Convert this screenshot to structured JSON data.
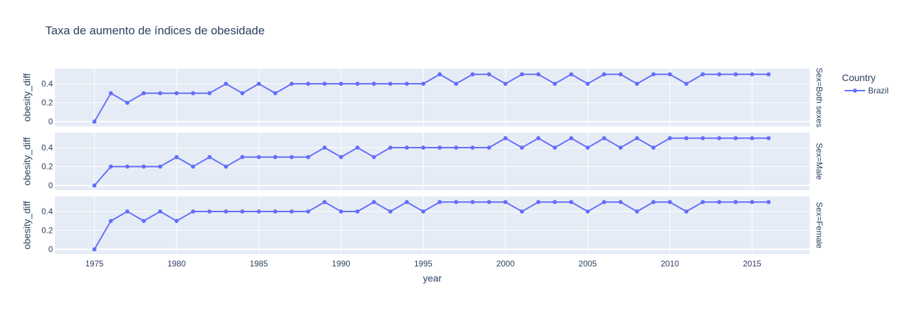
{
  "chart_data": {
    "type": "line",
    "title": "Taxa de aumento de índices de obesidade",
    "xlabel": "year",
    "ylabel": "obesity_diff",
    "xlim": [
      1972.6,
      2018.5
    ],
    "xticks": [
      1975,
      1980,
      1985,
      1990,
      1995,
      2000,
      2005,
      2010,
      2015
    ],
    "ylim": [
      -0.05,
      0.56
    ],
    "yticks": [
      0,
      0.2,
      0.4
    ],
    "legend": {
      "title": "Country",
      "entries": [
        "Brazil"
      ],
      "placement": "top-right"
    },
    "colors": {
      "series": "#636efa",
      "plot_bg": "#e5ecf6",
      "grid": "#ffffff",
      "text": "#2a3f5f"
    },
    "x": [
      1975,
      1976,
      1977,
      1978,
      1979,
      1980,
      1981,
      1982,
      1983,
      1984,
      1985,
      1986,
      1987,
      1988,
      1989,
      1990,
      1991,
      1992,
      1993,
      1994,
      1995,
      1996,
      1997,
      1998,
      1999,
      2000,
      2001,
      2002,
      2003,
      2004,
      2005,
      2006,
      2007,
      2008,
      2009,
      2010,
      2011,
      2012,
      2013,
      2014,
      2015,
      2016
    ],
    "facets": [
      {
        "label": "Sex=Both sexes",
        "series": [
          {
            "name": "Brazil",
            "values": [
              0,
              0.3,
              0.2,
              0.3,
              0.3,
              0.3,
              0.3,
              0.3,
              0.4,
              0.3,
              0.4,
              0.3,
              0.4,
              0.4,
              0.4,
              0.4,
              0.4,
              0.4,
              0.4,
              0.4,
              0.4,
              0.5,
              0.4,
              0.5,
              0.5,
              0.4,
              0.5,
              0.5,
              0.4,
              0.5,
              0.4,
              0.5,
              0.5,
              0.4,
              0.5,
              0.5,
              0.4,
              0.5,
              0.5,
              0.5,
              0.5,
              0.5
            ]
          }
        ]
      },
      {
        "label": "Sex=Male",
        "series": [
          {
            "name": "Brazil",
            "values": [
              0,
              0.2,
              0.2,
              0.2,
              0.2,
              0.3,
              0.2,
              0.3,
              0.2,
              0.3,
              0.3,
              0.3,
              0.3,
              0.3,
              0.4,
              0.3,
              0.4,
              0.3,
              0.4,
              0.4,
              0.4,
              0.4,
              0.4,
              0.4,
              0.4,
              0.5,
              0.4,
              0.5,
              0.4,
              0.5,
              0.4,
              0.5,
              0.4,
              0.5,
              0.4,
              0.5,
              0.5,
              0.5,
              0.5,
              0.5,
              0.5,
              0.5
            ]
          }
        ]
      },
      {
        "label": "Sex=Female",
        "series": [
          {
            "name": "Brazil",
            "values": [
              0,
              0.3,
              0.4,
              0.3,
              0.4,
              0.3,
              0.4,
              0.4,
              0.4,
              0.4,
              0.4,
              0.4,
              0.4,
              0.4,
              0.5,
              0.4,
              0.4,
              0.5,
              0.4,
              0.5,
              0.4,
              0.5,
              0.5,
              0.5,
              0.5,
              0.5,
              0.4,
              0.5,
              0.5,
              0.5,
              0.4,
              0.5,
              0.5,
              0.4,
              0.5,
              0.5,
              0.4,
              0.5,
              0.5,
              0.5,
              0.5,
              0.5
            ]
          }
        ]
      }
    ]
  }
}
